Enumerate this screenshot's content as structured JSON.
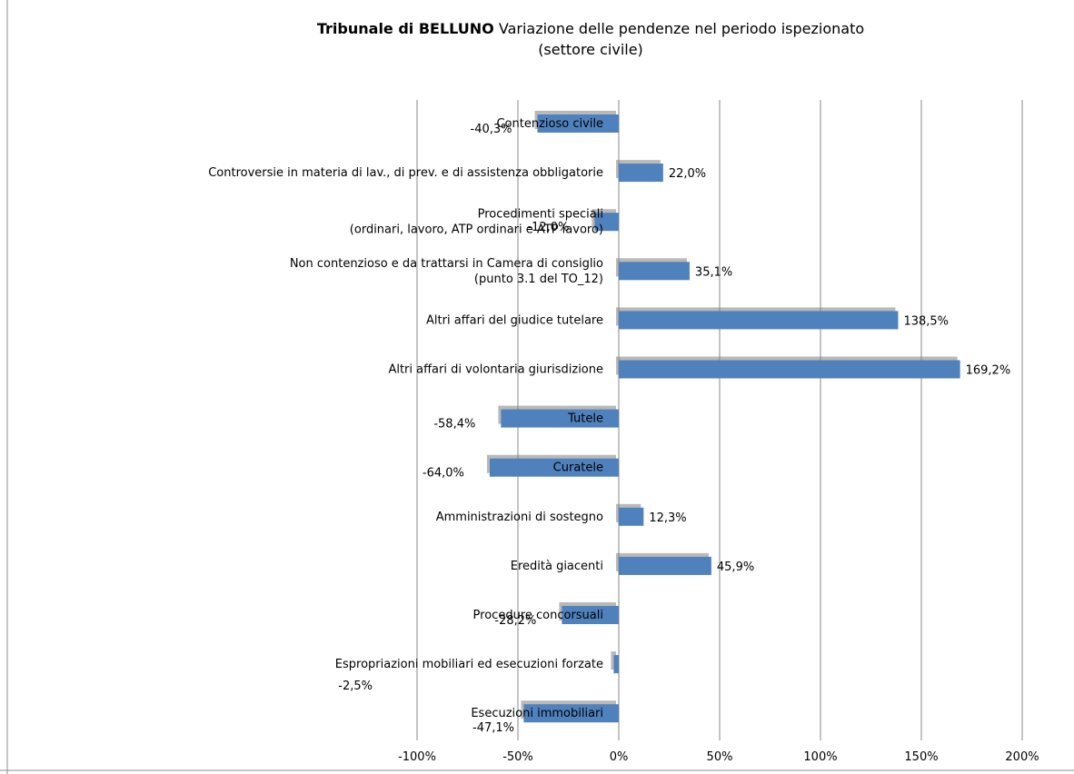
{
  "chart_data": {
    "type": "bar",
    "orientation": "horizontal",
    "title_bold": "Tribunale di BELLUNO",
    "title_rest": "Variazione delle pendenze nel periodo ispezionato",
    "subtitle": "(settore civile)",
    "categories": [
      [
        "Contenzioso civile"
      ],
      [
        "Controversie in materia di lav., di prev. e di assistenza obbligatorie"
      ],
      [
        "Procedimenti speciali",
        "(ordinari, lavoro, ATP ordinari e ATP lavoro)"
      ],
      [
        "Non contenzioso e da trattarsi in Camera di consiglio",
        "(punto 3.1 del TO_12)"
      ],
      [
        "Altri affari del giudice tutelare"
      ],
      [
        "Altri affari di volontaria giurisdizione"
      ],
      [
        "Tutele"
      ],
      [
        "Curatele"
      ],
      [
        "Amministrazioni di sostegno"
      ],
      [
        "Eredità giacenti"
      ],
      [
        "Procedure concorsuali"
      ],
      [
        "Espropriazioni mobiliari ed esecuzioni forzate"
      ],
      [
        "Esecuzioni immobiliari"
      ]
    ],
    "values": [
      -40.3,
      22.0,
      -12.0,
      35.1,
      138.5,
      169.2,
      -58.4,
      -64.0,
      12.3,
      45.9,
      -28.2,
      -2.5,
      -47.1
    ],
    "value_labels": [
      "-40,3%",
      "22,0%",
      "-12,0%",
      "35,1%",
      "138,5%",
      "169,2%",
      "-58,4%",
      "-64,0%",
      "12,3%",
      "45,9%",
      "-28,2%",
      "-2,5%",
      "-47,1%"
    ],
    "xlim": [
      -100,
      200
    ],
    "xticks": [
      -100,
      -50,
      0,
      50,
      100,
      150,
      200
    ],
    "xtick_labels": [
      "-100%",
      "-50%",
      "0%",
      "50%",
      "100%",
      "150%",
      "200%"
    ],
    "grid": true,
    "bar_color": "#4F81BD",
    "shadow_color": "#7F7F7F"
  }
}
